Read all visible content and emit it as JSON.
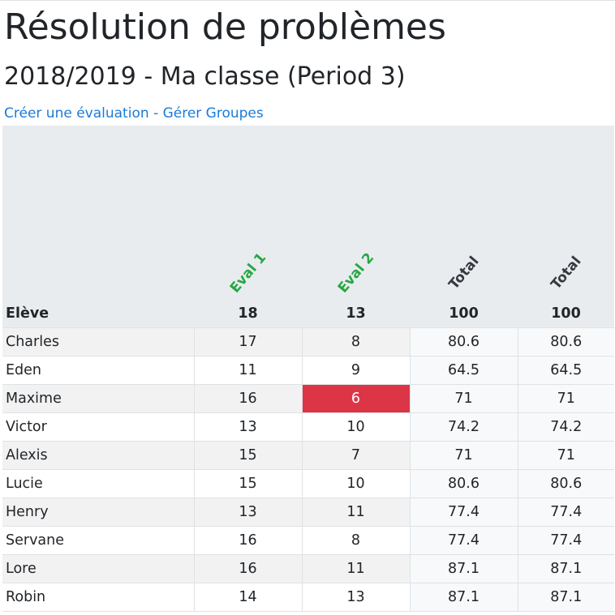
{
  "page": {
    "title": "Résolution de problèmes",
    "subtitle": "2018/2019 - Ma classe (Period 3)",
    "links": {
      "create": "Créer une évaluation",
      "separator": " - ",
      "groups": "Gérer Groupes"
    }
  },
  "table": {
    "headers": [
      "Eval 1",
      "Eval 2",
      "Total",
      "Total"
    ],
    "max_row": {
      "label": "Elève",
      "values": [
        "18",
        "13",
        "100",
        "100"
      ]
    },
    "rows": [
      {
        "name": "Charles",
        "cells": [
          "17",
          "8",
          "80.6",
          "80.6"
        ]
      },
      {
        "name": "Eden",
        "cells": [
          "11",
          "9",
          "64.5",
          "64.5"
        ]
      },
      {
        "name": "Maxime",
        "cells": [
          "16",
          "6",
          "71",
          "71"
        ]
      },
      {
        "name": "Victor",
        "cells": [
          "13",
          "10",
          "74.2",
          "74.2"
        ]
      },
      {
        "name": "Alexis",
        "cells": [
          "15",
          "7",
          "71",
          "71"
        ]
      },
      {
        "name": "Lucie",
        "cells": [
          "15",
          "10",
          "80.6",
          "80.6"
        ]
      },
      {
        "name": "Henry",
        "cells": [
          "13",
          "11",
          "77.4",
          "77.4"
        ]
      },
      {
        "name": "Servane",
        "cells": [
          "16",
          "8",
          "77.4",
          "77.4"
        ]
      },
      {
        "name": "Lore",
        "cells": [
          "16",
          "11",
          "87.1",
          "87.1"
        ]
      },
      {
        "name": "Robin",
        "cells": [
          "14",
          "13",
          "87.1",
          "87.1"
        ]
      }
    ]
  },
  "colors": {
    "eval_header": "#28a745",
    "total_header": "#343a40",
    "link": "#1a7bd8",
    "alert_cell": "#dc3545"
  }
}
